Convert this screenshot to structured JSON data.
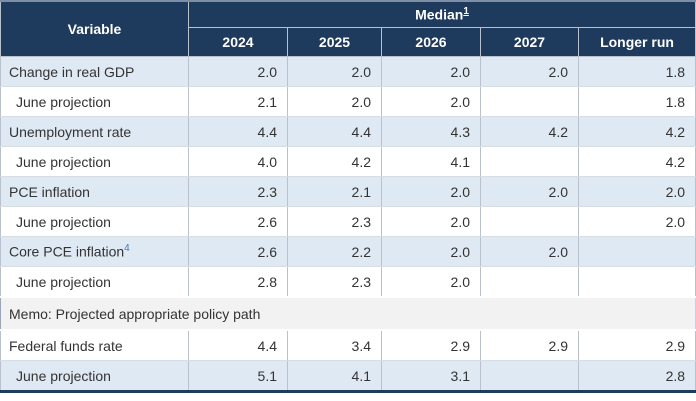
{
  "colors": {
    "header_bg": "#1e3a5c",
    "header_text": "#ffffff",
    "shaded_row_bg": "#dfe9f3",
    "white_row_bg": "#ffffff",
    "memo_row_bg": "#f2f2f2",
    "body_text": "#333333",
    "footnote_link": "#4c7ab0",
    "grid_line": "#b9c2cc",
    "bottom_border": "#1e3a5c"
  },
  "header": {
    "variable_label": "Variable",
    "median_label": "Median",
    "median_footnote": "1",
    "years": [
      "2024",
      "2025",
      "2026",
      "2027",
      "Longer run"
    ]
  },
  "rows": [
    {
      "label": "Change in real GDP",
      "values": [
        "2.0",
        "2.0",
        "2.0",
        "2.0",
        "1.8"
      ]
    },
    {
      "label": "June projection",
      "values": [
        "2.1",
        "2.0",
        "2.0",
        "",
        "1.8"
      ]
    },
    {
      "label": "Unemployment rate",
      "values": [
        "4.4",
        "4.4",
        "4.3",
        "4.2",
        "4.2"
      ]
    },
    {
      "label": "June projection",
      "values": [
        "4.0",
        "4.2",
        "4.1",
        "",
        "4.2"
      ]
    },
    {
      "label": "PCE inflation",
      "values": [
        "2.3",
        "2.1",
        "2.0",
        "2.0",
        "2.0"
      ]
    },
    {
      "label": "June projection",
      "values": [
        "2.6",
        "2.3",
        "2.0",
        "",
        "2.0"
      ]
    },
    {
      "label": "Core PCE inflation",
      "footnote": "4",
      "values": [
        "2.6",
        "2.2",
        "2.0",
        "2.0",
        ""
      ]
    },
    {
      "label": "June projection",
      "values": [
        "2.8",
        "2.3",
        "2.0",
        "",
        ""
      ]
    },
    {
      "label": "Memo: Projected appropriate policy path"
    },
    {
      "label": "Federal funds rate",
      "values": [
        "4.4",
        "3.4",
        "2.9",
        "2.9",
        "2.9"
      ]
    },
    {
      "label": "June projection",
      "values": [
        "5.1",
        "4.1",
        "3.1",
        "",
        "2.8"
      ]
    }
  ]
}
